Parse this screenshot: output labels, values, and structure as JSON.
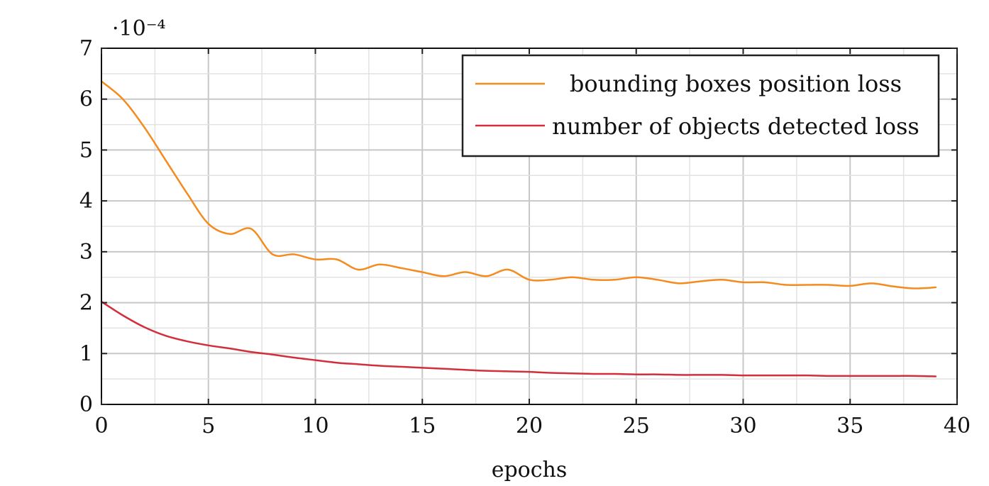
{
  "chart_data": {
    "type": "line",
    "xlabel": "epochs",
    "ylabel": "",
    "y_multiplier_label": "·10⁻⁴",
    "xlim": [
      0,
      40
    ],
    "ylim": [
      0,
      7
    ],
    "x_ticks": [
      0,
      5,
      10,
      15,
      20,
      25,
      30,
      35,
      40
    ],
    "y_ticks": [
      0,
      1,
      2,
      3,
      4,
      5,
      6,
      7
    ],
    "x_tick_labels": [
      "0",
      "5",
      "10",
      "15",
      "20",
      "25",
      "30",
      "35",
      "40"
    ],
    "y_tick_labels": [
      "0",
      "1",
      "2",
      "3",
      "4",
      "5",
      "6",
      "7"
    ],
    "grid": true,
    "legend_position": "top-right",
    "series": [
      {
        "name": "bounding boxes position loss",
        "color": "#f58b1f",
        "x": [
          0,
          1,
          2,
          3,
          4,
          5,
          6,
          7,
          8,
          9,
          10,
          11,
          12,
          13,
          14,
          15,
          16,
          17,
          18,
          19,
          20,
          21,
          22,
          23,
          24,
          25,
          26,
          27,
          28,
          29,
          30,
          31,
          32,
          33,
          34,
          35,
          36,
          37,
          38,
          39
        ],
        "values": [
          6.35,
          6.0,
          5.45,
          4.8,
          4.15,
          3.55,
          3.35,
          3.45,
          2.95,
          2.95,
          2.85,
          2.85,
          2.65,
          2.75,
          2.68,
          2.6,
          2.52,
          2.6,
          2.52,
          2.65,
          2.45,
          2.45,
          2.5,
          2.45,
          2.45,
          2.5,
          2.45,
          2.38,
          2.42,
          2.45,
          2.4,
          2.4,
          2.35,
          2.35,
          2.35,
          2.33,
          2.38,
          2.32,
          2.28,
          2.3
        ]
      },
      {
        "name": "number of objects detected loss",
        "color": "#d22f3c",
        "x": [
          0,
          1,
          2,
          3,
          4,
          5,
          6,
          7,
          8,
          9,
          10,
          11,
          12,
          13,
          14,
          15,
          16,
          17,
          18,
          19,
          20,
          21,
          22,
          23,
          24,
          25,
          26,
          27,
          28,
          29,
          30,
          31,
          32,
          33,
          34,
          35,
          36,
          37,
          38,
          39
        ],
        "values": [
          2.02,
          1.75,
          1.52,
          1.35,
          1.24,
          1.16,
          1.1,
          1.03,
          0.98,
          0.92,
          0.87,
          0.82,
          0.79,
          0.76,
          0.74,
          0.72,
          0.7,
          0.68,
          0.66,
          0.65,
          0.64,
          0.62,
          0.61,
          0.6,
          0.6,
          0.59,
          0.59,
          0.58,
          0.58,
          0.58,
          0.57,
          0.57,
          0.57,
          0.57,
          0.56,
          0.56,
          0.56,
          0.56,
          0.56,
          0.55
        ]
      }
    ]
  }
}
